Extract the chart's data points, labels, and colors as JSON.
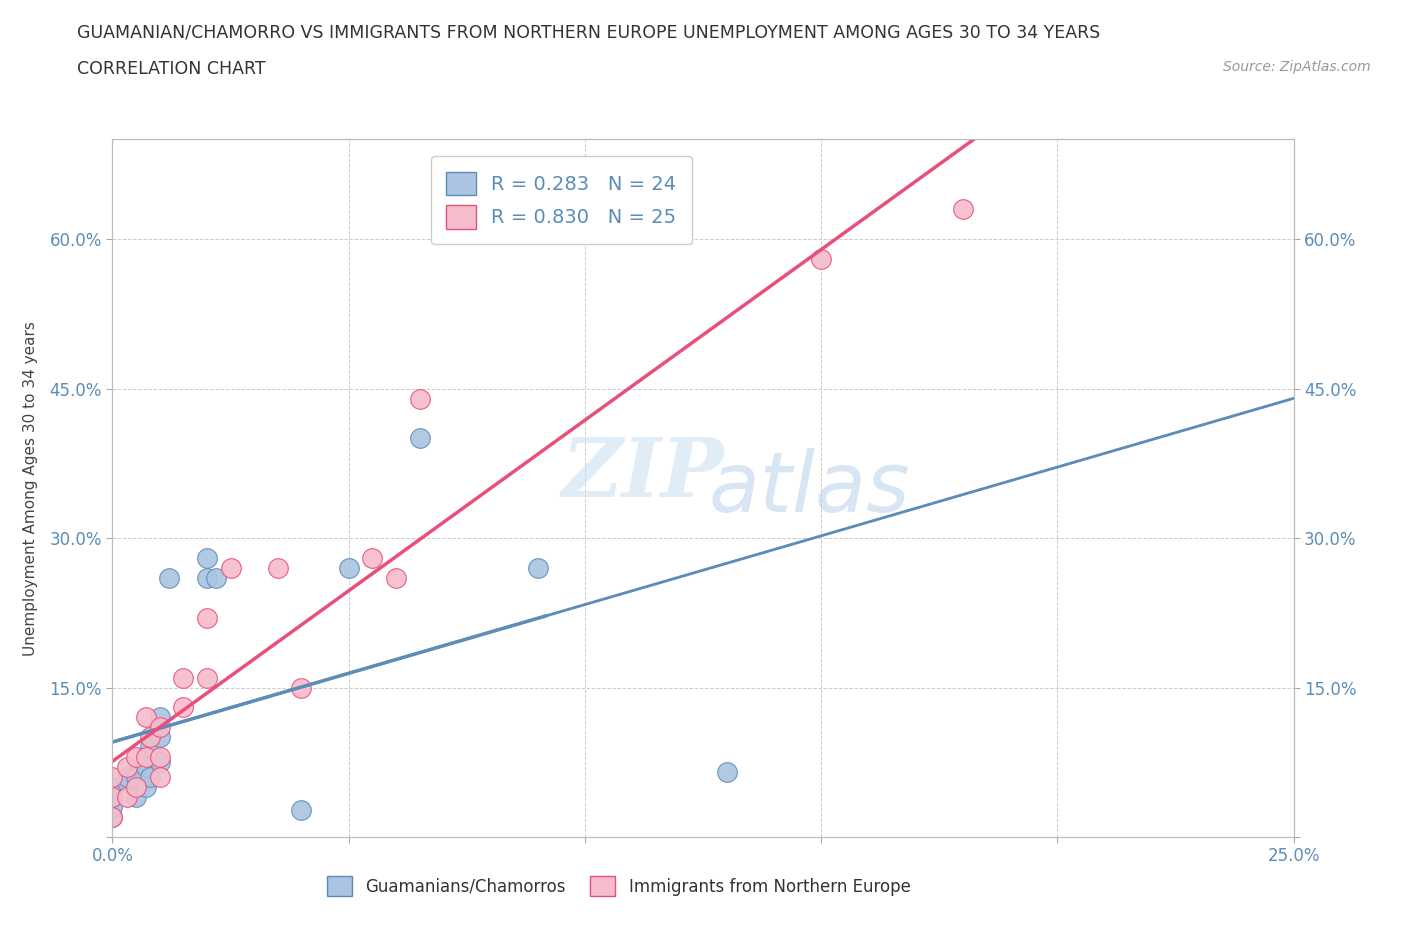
{
  "title_line1": "GUAMANIAN/CHAMORRO VS IMMIGRANTS FROM NORTHERN EUROPE UNEMPLOYMENT AMONG AGES 30 TO 34 YEARS",
  "title_line2": "CORRELATION CHART",
  "source_text": "Source: ZipAtlas.com",
  "ylabel": "Unemployment Among Ages 30 to 34 years",
  "xlim": [
    0.0,
    0.25
  ],
  "ylim": [
    0.0,
    0.7
  ],
  "xticks": [
    0.0,
    0.05,
    0.1,
    0.15,
    0.2,
    0.25
  ],
  "yticks": [
    0.0,
    0.15,
    0.3,
    0.45,
    0.6
  ],
  "xticklabels": [
    "0.0%",
    "",
    "",
    "",
    "",
    "25.0%"
  ],
  "yticklabels": [
    "",
    "15.0%",
    "30.0%",
    "45.0%",
    "60.0%"
  ],
  "blue_color": "#aac4e2",
  "pink_color": "#f5bccb",
  "blue_line_color": "#5b8db8",
  "pink_line_color": "#e8507a",
  "blue_r": 0.283,
  "blue_n": 24,
  "pink_r": 0.83,
  "pink_n": 25,
  "legend_label_blue": "Guamanians/Chamorros",
  "legend_label_pink": "Immigrants from Northern Europe",
  "watermark_zip": "ZIP",
  "watermark_atlas": "atlas",
  "blue_points_x": [
    0.0,
    0.0,
    0.0,
    0.0,
    0.003,
    0.003,
    0.005,
    0.005,
    0.007,
    0.007,
    0.008,
    0.008,
    0.01,
    0.01,
    0.01,
    0.012,
    0.02,
    0.02,
    0.022,
    0.04,
    0.05,
    0.065,
    0.09,
    0.13
  ],
  "blue_points_y": [
    0.02,
    0.03,
    0.04,
    0.05,
    0.055,
    0.06,
    0.04,
    0.06,
    0.05,
    0.07,
    0.06,
    0.09,
    0.075,
    0.1,
    0.12,
    0.26,
    0.26,
    0.28,
    0.26,
    0.027,
    0.27,
    0.4,
    0.27,
    0.065
  ],
  "pink_points_x": [
    0.0,
    0.0,
    0.0,
    0.003,
    0.003,
    0.005,
    0.005,
    0.007,
    0.007,
    0.008,
    0.01,
    0.01,
    0.01,
    0.015,
    0.015,
    0.02,
    0.02,
    0.025,
    0.035,
    0.04,
    0.055,
    0.06,
    0.065,
    0.15,
    0.18
  ],
  "pink_points_y": [
    0.02,
    0.04,
    0.06,
    0.04,
    0.07,
    0.05,
    0.08,
    0.08,
    0.12,
    0.1,
    0.06,
    0.08,
    0.11,
    0.13,
    0.16,
    0.16,
    0.22,
    0.27,
    0.27,
    0.15,
    0.28,
    0.26,
    0.44,
    0.58,
    0.63
  ],
  "background_color": "#ffffff",
  "grid_color": "#cccccc"
}
